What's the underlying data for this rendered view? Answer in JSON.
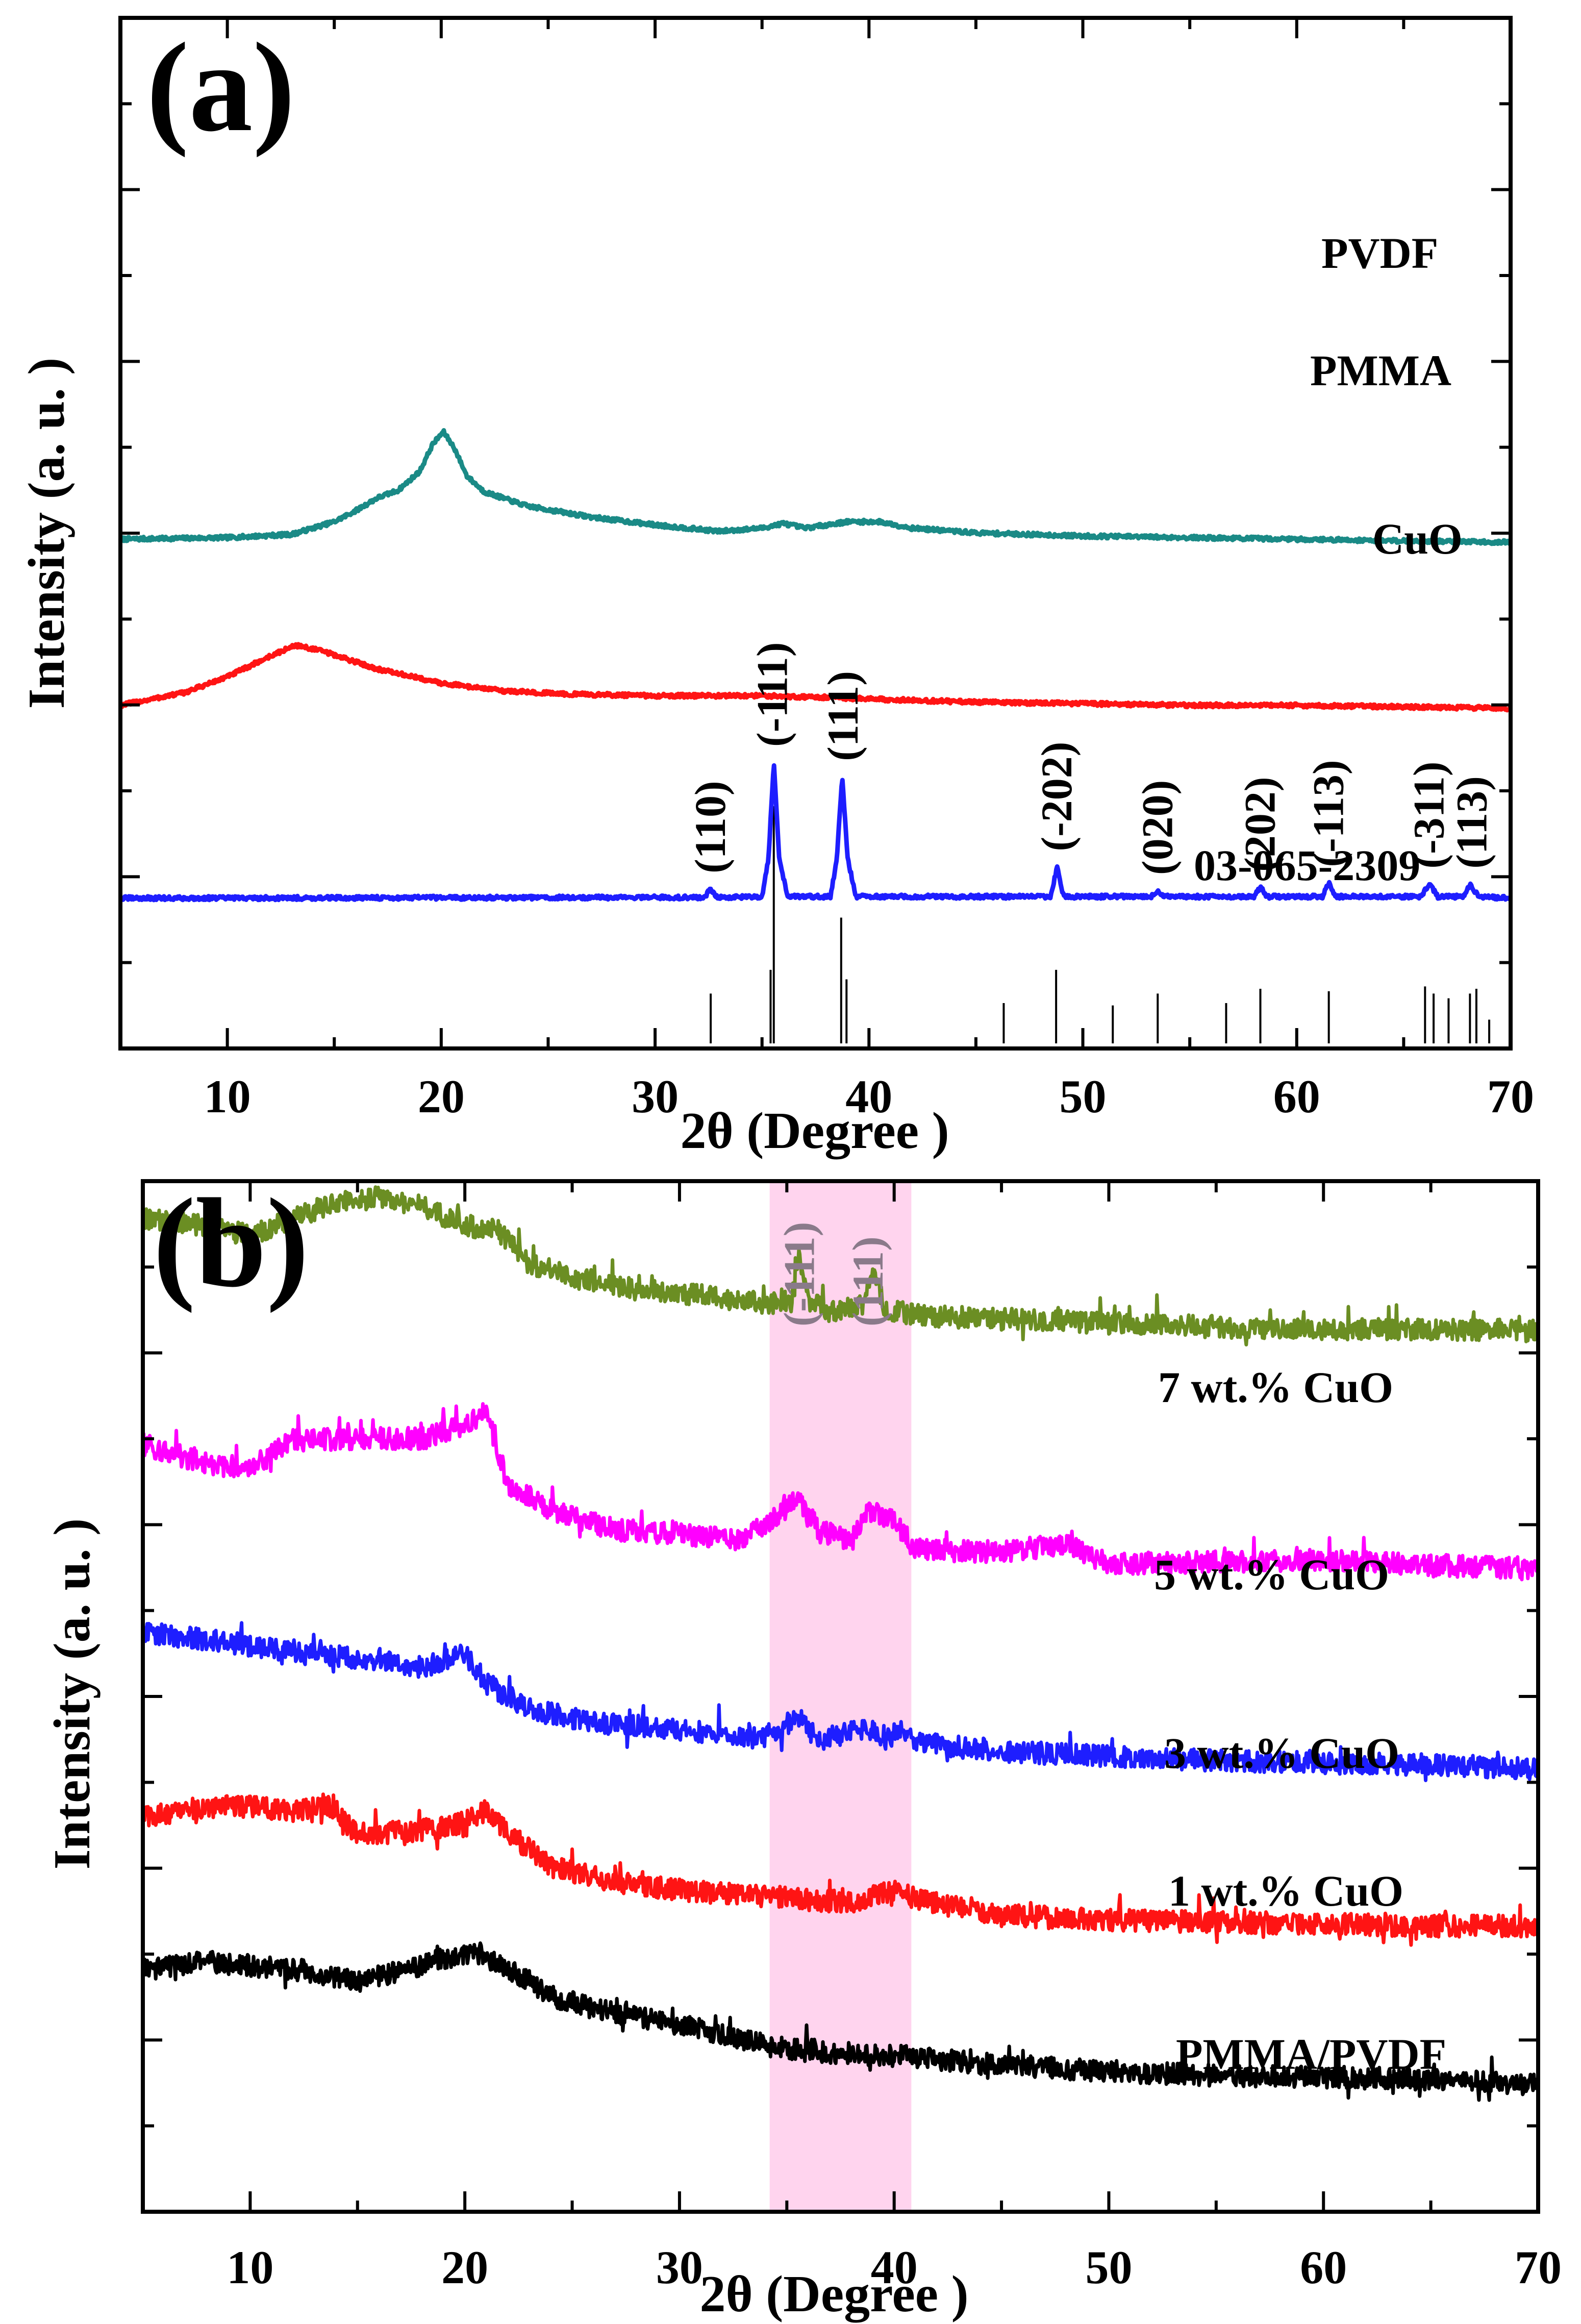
{
  "chart_data": [
    {
      "type": "line",
      "panel_label": "(a)",
      "xlabel": "2θ (Degree )",
      "ylabel": "Intensity (a. u. )",
      "xlim": [
        5,
        70
      ],
      "xticks": [
        10,
        20,
        30,
        40,
        50,
        60,
        70
      ],
      "xtick_labels": [
        "10",
        "20",
        "30",
        "40",
        "50",
        "60",
        "70"
      ],
      "y_ticks_labeled": false,
      "grid": false,
      "series": [
        {
          "name": "PVDF",
          "color": "#1a8a86",
          "offset": 3.2,
          "points": [
            [
              5,
              0.02
            ],
            [
              10,
              0.03
            ],
            [
              13,
              0.05
            ],
            [
              15,
              0.13
            ],
            [
              16,
              0.2
            ],
            [
              17,
              0.28
            ],
            [
              18,
              0.33
            ],
            [
              19,
              0.45
            ],
            [
              19.6,
              0.62
            ],
            [
              20.1,
              0.7
            ],
            [
              20.6,
              0.6
            ],
            [
              21.2,
              0.42
            ],
            [
              22,
              0.32
            ],
            [
              24,
              0.23
            ],
            [
              27,
              0.16
            ],
            [
              30,
              0.11
            ],
            [
              33,
              0.07
            ],
            [
              35,
              0.09
            ],
            [
              36,
              0.12
            ],
            [
              37,
              0.09
            ],
            [
              39,
              0.13
            ],
            [
              40.5,
              0.13
            ],
            [
              42,
              0.09
            ],
            [
              45,
              0.06
            ],
            [
              50,
              0.04
            ],
            [
              55,
              0.03
            ],
            [
              60,
              0.02
            ],
            [
              65,
              0.01
            ],
            [
              70,
              0
            ]
          ]
        },
        {
          "name": "PMMA",
          "color": "#ff1414",
          "offset": 2.15,
          "points": [
            [
              5,
              0.02
            ],
            [
              8,
              0.1
            ],
            [
              10,
              0.2
            ],
            [
              12,
              0.33
            ],
            [
              13.2,
              0.4
            ],
            [
              14.5,
              0.36
            ],
            [
              17,
              0.25
            ],
            [
              20,
              0.16
            ],
            [
              23,
              0.11
            ],
            [
              26,
              0.09
            ],
            [
              30,
              0.08
            ],
            [
              35,
              0.08
            ],
            [
              38,
              0.07
            ],
            [
              40,
              0.06
            ],
            [
              45,
              0.04
            ],
            [
              50,
              0.03
            ],
            [
              55,
              0.02
            ],
            [
              60,
              0.02
            ],
            [
              65,
              0.01
            ],
            [
              70,
              0
            ]
          ]
        },
        {
          "name": "CuO",
          "color": "#1e1eff",
          "offset": 0.95,
          "points": [
            [
              5,
              0
            ],
            [
              30,
              0.005
            ],
            [
              32.3,
              0.005
            ],
            [
              32.6,
              0.06
            ],
            [
              32.9,
              0.005
            ],
            [
              35,
              0.01
            ],
            [
              35.3,
              0.25
            ],
            [
              35.55,
              0.86
            ],
            [
              35.8,
              0.25
            ],
            [
              36.2,
              0.01
            ],
            [
              38.2,
              0.01
            ],
            [
              38.5,
              0.25
            ],
            [
              38.75,
              0.77
            ],
            [
              39,
              0.25
            ],
            [
              39.4,
              0.01
            ],
            [
              48.5,
              0.01
            ],
            [
              48.8,
              0.2
            ],
            [
              49.1,
              0.01
            ],
            [
              53.2,
              0.01
            ],
            [
              53.5,
              0.05
            ],
            [
              53.8,
              0.01
            ],
            [
              58,
              0.01
            ],
            [
              58.3,
              0.07
            ],
            [
              58.6,
              0.01
            ],
            [
              61.2,
              0.01
            ],
            [
              61.5,
              0.1
            ],
            [
              61.8,
              0.01
            ],
            [
              65.8,
              0.01
            ],
            [
              66.2,
              0.09
            ],
            [
              66.6,
              0.01
            ],
            [
              67.8,
              0.01
            ],
            [
              68.1,
              0.09
            ],
            [
              68.5,
              0.01
            ],
            [
              70,
              0
            ]
          ]
        }
      ],
      "series_labels": [
        "PVDF",
        "PMMA",
        "CuO"
      ],
      "reference_pattern": {
        "name": "03-065-2309",
        "color": "#000000",
        "sticks": [
          [
            32.6,
            0.21
          ],
          [
            35.4,
            0.31
          ],
          [
            35.55,
            1.0
          ],
          [
            38.7,
            0.53
          ],
          [
            38.95,
            0.27
          ],
          [
            46.3,
            0.17
          ],
          [
            48.75,
            0.31
          ],
          [
            51.4,
            0.16
          ],
          [
            53.5,
            0.21
          ],
          [
            56.7,
            0.17
          ],
          [
            58.3,
            0.23
          ],
          [
            61.5,
            0.22
          ],
          [
            66.0,
            0.24
          ],
          [
            66.4,
            0.21
          ],
          [
            67.1,
            0.19
          ],
          [
            68.1,
            0.21
          ],
          [
            68.4,
            0.23
          ],
          [
            69.0,
            0.1
          ]
        ]
      },
      "peak_labels": [
        {
          "text": "(110)",
          "x": 32.6
        },
        {
          "text": "(-111)",
          "x": 35.5
        },
        {
          "text": "(111)",
          "x": 38.8
        },
        {
          "text": "(-202)",
          "x": 48.8
        },
        {
          "text": "(020)",
          "x": 53.5
        },
        {
          "text": "(202)",
          "x": 58.3
        },
        {
          "text": "(-113)",
          "x": 61.5
        },
        {
          "text": "(-311)",
          "x": 66.2
        },
        {
          "text": "(113)",
          "x": 68.2
        }
      ]
    },
    {
      "type": "line",
      "panel_label": "(b)",
      "xlabel": "2θ (Degree )",
      "ylabel": "Intensity (a. u. )",
      "xlim": [
        5,
        70
      ],
      "xticks": [
        10,
        20,
        30,
        40,
        50,
        60,
        70
      ],
      "xtick_labels": [
        "10",
        "20",
        "30",
        "40",
        "50",
        "60",
        "70"
      ],
      "y_ticks_labeled": false,
      "grid": false,
      "highlight_band": {
        "x_range": [
          34.2,
          40.8
        ],
        "color": "#ffc6e8"
      },
      "band_peak_labels": [
        {
          "text": "(-111)",
          "x": 35.6
        },
        {
          "text": "(111)",
          "x": 38.8
        }
      ],
      "series": [
        {
          "name": "7 wt.% CuO",
          "color": "#6b8e23",
          "offset": 3.68,
          "points": [
            [
              5,
              0.55
            ],
            [
              8,
              0.52
            ],
            [
              10,
              0.47
            ],
            [
              12,
              0.55
            ],
            [
              14,
              0.64
            ],
            [
              16,
              0.66
            ],
            [
              18,
              0.62
            ],
            [
              20,
              0.52
            ],
            [
              21.5,
              0.5
            ],
            [
              23,
              0.33
            ],
            [
              25,
              0.26
            ],
            [
              28,
              0.2
            ],
            [
              31,
              0.17
            ],
            [
              34,
              0.13
            ],
            [
              35.2,
              0.14
            ],
            [
              35.6,
              0.38
            ],
            [
              36,
              0.14
            ],
            [
              37,
              0.08
            ],
            [
              38.5,
              0.12
            ],
            [
              39,
              0.28
            ],
            [
              39.6,
              0.1
            ],
            [
              41,
              0.07
            ],
            [
              45,
              0.05
            ],
            [
              50,
              0.03
            ],
            [
              55,
              0.01
            ],
            [
              60,
              0
            ],
            [
              65,
              0
            ],
            [
              70,
              -0.01
            ]
          ]
        },
        {
          "name": "5 wt.% CuO",
          "color": "#ff00ff",
          "offset": 2.55,
          "points": [
            [
              5,
              0.55
            ],
            [
              8,
              0.45
            ],
            [
              10,
              0.43
            ],
            [
              12,
              0.57
            ],
            [
              15,
              0.58
            ],
            [
              18,
              0.58
            ],
            [
              20,
              0.65
            ],
            [
              21,
              0.72
            ],
            [
              22,
              0.35
            ],
            [
              24,
              0.22
            ],
            [
              27,
              0.12
            ],
            [
              30,
              0.1
            ],
            [
              33,
              0.07
            ],
            [
              35.5,
              0.27
            ],
            [
              36.5,
              0.12
            ],
            [
              38,
              0.06
            ],
            [
              38.8,
              0.22
            ],
            [
              40,
              0.17
            ],
            [
              41,
              0.02
            ],
            [
              45,
              0.01
            ],
            [
              48,
              0.05
            ],
            [
              50,
              -0.05
            ],
            [
              55,
              -0.04
            ],
            [
              60,
              -0.03
            ],
            [
              65,
              -0.06
            ],
            [
              70,
              -0.07
            ]
          ]
        },
        {
          "name": "3 wt.% CuO",
          "color": "#1e1eff",
          "offset": 1.6,
          "points": [
            [
              5,
              0.56
            ],
            [
              7,
              0.53
            ],
            [
              10,
              0.49
            ],
            [
              13,
              0.44
            ],
            [
              16,
              0.42
            ],
            [
              18,
              0.38
            ],
            [
              20,
              0.45
            ],
            [
              21,
              0.3
            ],
            [
              23,
              0.17
            ],
            [
              26,
              0.1
            ],
            [
              30,
              0.07
            ],
            [
              34,
              0.02
            ],
            [
              35.5,
              0.13
            ],
            [
              36.5,
              0.01
            ],
            [
              38.7,
              0.08
            ],
            [
              39.5,
              0.01
            ],
            [
              40.3,
              0.06
            ],
            [
              41,
              0
            ],
            [
              45,
              -0.04
            ],
            [
              50,
              -0.07
            ],
            [
              55,
              -0.09
            ],
            [
              60,
              -0.1
            ],
            [
              65,
              -0.11
            ],
            [
              70,
              -0.13
            ]
          ]
        },
        {
          "name": "1 wt.% CuO",
          "color": "#ff1414",
          "offset": 0.78,
          "points": [
            [
              5,
              0.45
            ],
            [
              8,
              0.5
            ],
            [
              10,
              0.5
            ],
            [
              12,
              0.47
            ],
            [
              13.5,
              0.52
            ],
            [
              15,
              0.36
            ],
            [
              18,
              0.38
            ],
            [
              20,
              0.42
            ],
            [
              21,
              0.48
            ],
            [
              22,
              0.37
            ],
            [
              24,
              0.2
            ],
            [
              27,
              0.12
            ],
            [
              30,
              0.08
            ],
            [
              34,
              0.05
            ],
            [
              36,
              0.03
            ],
            [
              38,
              0.02
            ],
            [
              40,
              0.08
            ],
            [
              41,
              0.04
            ],
            [
              45,
              -0.05
            ],
            [
              50,
              -0.07
            ],
            [
              55,
              -0.08
            ],
            [
              60,
              -0.09
            ],
            [
              65,
              -0.1
            ],
            [
              70,
              -0.1
            ]
          ]
        },
        {
          "name": "PMMA/PVDF",
          "color": "#000000",
          "offset": 0,
          "points": [
            [
              5,
              0.46
            ],
            [
              8,
              0.5
            ],
            [
              10,
              0.48
            ],
            [
              13,
              0.45
            ],
            [
              15,
              0.4
            ],
            [
              17,
              0.45
            ],
            [
              19,
              0.52
            ],
            [
              20.5,
              0.55
            ],
            [
              22,
              0.47
            ],
            [
              24,
              0.33
            ],
            [
              26,
              0.26
            ],
            [
              29,
              0.2
            ],
            [
              32,
              0.14
            ],
            [
              34,
              0.08
            ],
            [
              36,
              0.05
            ],
            [
              38,
              0.04
            ],
            [
              41,
              0.02
            ],
            [
              45,
              -0.02
            ],
            [
              50,
              -0.05
            ],
            [
              55,
              -0.07
            ],
            [
              60,
              -0.08
            ],
            [
              65,
              -0.09
            ],
            [
              70,
              -0.12
            ]
          ]
        }
      ],
      "series_labels": [
        "7 wt.% CuO",
        "5 wt.% CuO",
        "3 wt.% CuO",
        "1 wt.% CuO",
        "PMMA/PVDF"
      ]
    }
  ]
}
